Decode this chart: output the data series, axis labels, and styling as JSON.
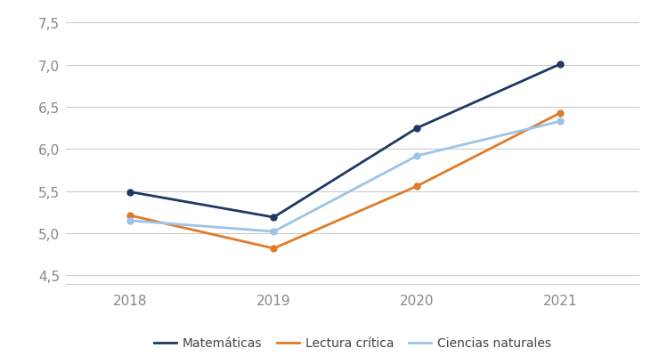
{
  "years": [
    2018,
    2019,
    2020,
    2021
  ],
  "series": {
    "Matemáticas": [
      5.49,
      5.19,
      6.25,
      7.01
    ],
    "Lectura crítica": [
      5.21,
      4.82,
      5.56,
      6.43
    ],
    "Ciencias naturales": [
      5.15,
      5.02,
      5.92,
      6.33
    ]
  },
  "colors": {
    "Matemáticas": "#1f3864",
    "Lectura crítica": "#e07b28",
    "Ciencias naturales": "#9dc3e6"
  },
  "ylim": [
    4.4,
    7.65
  ],
  "yticks": [
    4.5,
    5.0,
    5.5,
    6.0,
    6.5,
    7.0,
    7.5
  ],
  "ytick_labels": [
    "4,5",
    "5,0",
    "5,5",
    "6,0",
    "6,5",
    "7,0",
    "7,5"
  ],
  "xtick_labels": [
    "2018",
    "2019",
    "2020",
    "2021"
  ],
  "background_color": "#ffffff",
  "line_width": 2.0,
  "marker": "o",
  "marker_size": 5,
  "legend_fontsize": 10,
  "tick_fontsize": 11,
  "grid_color": "#cccccc",
  "spine_color": "#cccccc",
  "tick_color": "#888888"
}
